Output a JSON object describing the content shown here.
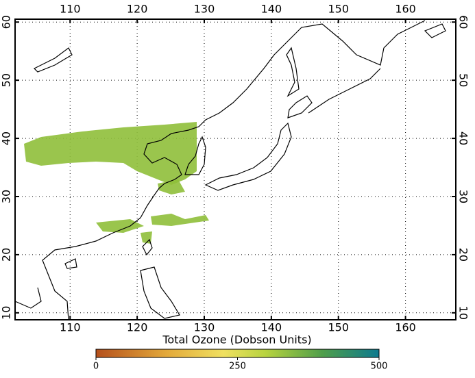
{
  "map": {
    "lonlim": [
      101.8,
      167.5
    ],
    "latlim": [
      8.8,
      60.5
    ],
    "lon_ticks": [
      110,
      120,
      130,
      140,
      150,
      160
    ],
    "lat_ticks": [
      10,
      20,
      30,
      40,
      50,
      60
    ],
    "colorbar": {
      "title": "Total Ozone (Dobson Units)",
      "ticks": [
        0,
        250,
        500
      ]
    }
  }
}
